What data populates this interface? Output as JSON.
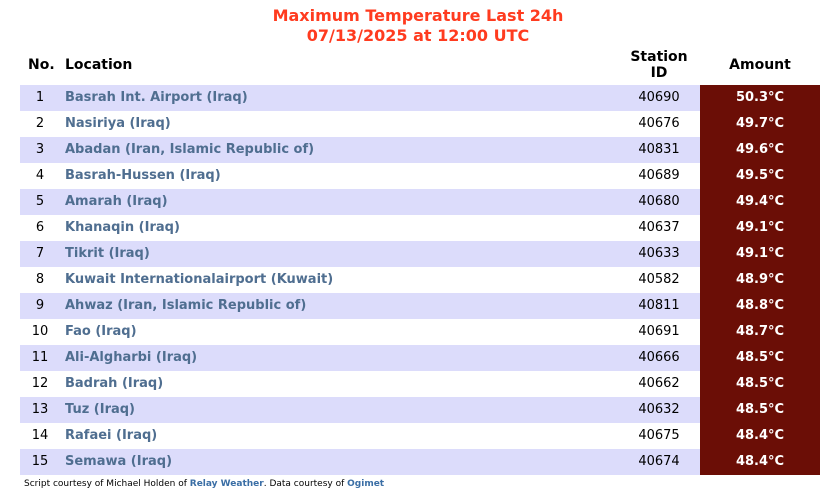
{
  "title": {
    "line1": "Maximum Temperature Last 24h",
    "line2": "07/13/2025 at 12:00 UTC"
  },
  "colors": {
    "title": "#ff3b1f",
    "row_alt": "#dcdcfb",
    "amount_bg": "#6b0e06",
    "location_text": "#4f6e90"
  },
  "table": {
    "headers": {
      "no": "No.",
      "location": "Location",
      "station_id_line1": "Station",
      "station_id_line2": "ID",
      "amount": "Amount"
    },
    "rows": [
      {
        "no": "1",
        "location": "Basrah Int. Airport (Iraq)",
        "station_id": "40690",
        "amount": "50.3°C"
      },
      {
        "no": "2",
        "location": "Nasiriya (Iraq)",
        "station_id": "40676",
        "amount": "49.7°C"
      },
      {
        "no": "3",
        "location": "Abadan (Iran, Islamic Republic of)",
        "station_id": "40831",
        "amount": "49.6°C"
      },
      {
        "no": "4",
        "location": "Basrah-Hussen (Iraq)",
        "station_id": "40689",
        "amount": "49.5°C"
      },
      {
        "no": "5",
        "location": "Amarah (Iraq)",
        "station_id": "40680",
        "amount": "49.4°C"
      },
      {
        "no": "6",
        "location": "Khanaqin (Iraq)",
        "station_id": "40637",
        "amount": "49.1°C"
      },
      {
        "no": "7",
        "location": "Tikrit (Iraq)",
        "station_id": "40633",
        "amount": "49.1°C"
      },
      {
        "no": "8",
        "location": "Kuwait Internationalairport (Kuwait)",
        "station_id": "40582",
        "amount": "48.9°C"
      },
      {
        "no": "9",
        "location": "Ahwaz (Iran, Islamic Republic of)",
        "station_id": "40811",
        "amount": "48.8°C"
      },
      {
        "no": "10",
        "location": "Fao (Iraq)",
        "station_id": "40691",
        "amount": "48.7°C"
      },
      {
        "no": "11",
        "location": "Ali-Algharbi (Iraq)",
        "station_id": "40666",
        "amount": "48.5°C"
      },
      {
        "no": "12",
        "location": "Badrah (Iraq)",
        "station_id": "40662",
        "amount": "48.5°C"
      },
      {
        "no": "13",
        "location": "Tuz (Iraq)",
        "station_id": "40632",
        "amount": "48.5°C"
      },
      {
        "no": "14",
        "location": "Rafaei (Iraq)",
        "station_id": "40675",
        "amount": "48.4°C"
      },
      {
        "no": "15",
        "location": "Semawa (Iraq)",
        "station_id": "40674",
        "amount": "48.4°C"
      }
    ]
  },
  "footer": {
    "prefix": "Script courtesy of  Michael Holden of ",
    "link1": "Relay Weather",
    "middle": ". Data courtesy of ",
    "link2": "Ogimet"
  }
}
